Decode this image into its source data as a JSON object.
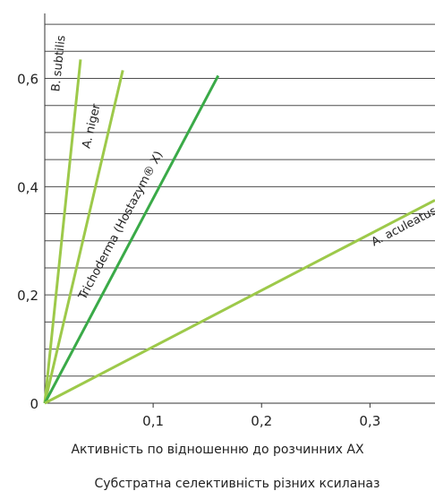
{
  "chart_data": {
    "type": "line",
    "title": "",
    "xlabel": "Активність по відношенню до розчинних АХ",
    "caption": "Субстратна селективність різних ксиланаз",
    "ylabel": "",
    "xlim": [
      0,
      0.36
    ],
    "ylim": [
      0,
      0.72
    ],
    "grid": true,
    "y_ticks": [
      {
        "value": 0,
        "label": "0"
      },
      {
        "value": 0.2,
        "label": "0,2"
      },
      {
        "value": 0.4,
        "label": "0,4"
      },
      {
        "value": 0.6,
        "label": "0,6"
      }
    ],
    "x_ticks": [
      {
        "value": 0.1,
        "label": "0,1"
      },
      {
        "value": 0.2,
        "label": "0,2"
      },
      {
        "value": 0.3,
        "label": "0,3"
      }
    ],
    "y_gridlines": [
      0.05,
      0.1,
      0.15,
      0.2,
      0.25,
      0.3,
      0.35,
      0.4,
      0.45,
      0.5,
      0.55,
      0.6,
      0.65,
      0.7
    ],
    "series": [
      {
        "name": "B. subtilis",
        "color": "#9dc94a",
        "points": [
          [
            0,
            0
          ],
          [
            0.033,
            0.635
          ]
        ]
      },
      {
        "name": "A. niger",
        "color": "#9dc94a",
        "points": [
          [
            0,
            0
          ],
          [
            0.072,
            0.615
          ]
        ]
      },
      {
        "name": "Trichoderma (Hostazym® X)",
        "color": "#3aaa48",
        "points": [
          [
            0,
            0
          ],
          [
            0.16,
            0.605
          ]
        ]
      },
      {
        "name": "A. aculeatus",
        "color": "#9dc94a",
        "points": [
          [
            0,
            0
          ],
          [
            0.36,
            0.375
          ]
        ]
      }
    ]
  }
}
